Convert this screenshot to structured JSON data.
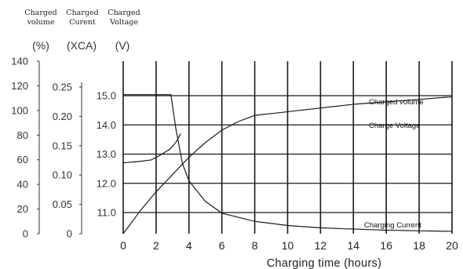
{
  "axes_headers": {
    "volume": [
      "Charged",
      "volume"
    ],
    "current": [
      "Charged",
      "Curent"
    ],
    "voltage": [
      "Charged",
      "Voltage"
    ]
  },
  "units": {
    "volume": "(%)",
    "current": "(XCA)",
    "voltage": "(V)"
  },
  "chart_data": {
    "type": "line",
    "xlabel": "Charging time (hours)",
    "x_ticks": [
      "0",
      "2",
      "4",
      "6",
      "8",
      "10",
      "12",
      "14",
      "16",
      "18",
      "20"
    ],
    "xlim": [
      0,
      20
    ],
    "y_axes": {
      "volume": {
        "ticks": [
          "0",
          "20",
          "40",
          "60",
          "80",
          "100",
          "120",
          "140"
        ],
        "range": [
          0,
          140
        ]
      },
      "current": {
        "ticks": [
          "0",
          "0.05",
          "0.10",
          "0.15",
          "0.20",
          "0.25"
        ],
        "range": [
          0,
          0.25
        ]
      },
      "voltage": {
        "ticks": [
          "11.0",
          "12.0",
          "13.0",
          "14.0",
          "15.0"
        ],
        "range": [
          11.0,
          15.0
        ]
      }
    },
    "grid": true,
    "series": [
      {
        "name": "Charged volume",
        "axis": "volume",
        "points": [
          [
            0,
            0
          ],
          [
            1,
            18
          ],
          [
            2,
            34
          ],
          [
            3,
            48
          ],
          [
            4,
            62
          ],
          [
            5,
            74
          ],
          [
            6,
            84
          ],
          [
            7,
            91
          ],
          [
            8,
            96
          ],
          [
            10,
            99
          ],
          [
            12,
            102
          ],
          [
            14,
            105
          ],
          [
            16,
            107
          ],
          [
            18,
            109
          ],
          [
            20,
            111
          ]
        ]
      },
      {
        "name": "Charge Voltage",
        "axis": "voltage",
        "points": [
          [
            0,
            12.7
          ],
          [
            1,
            12.75
          ],
          [
            1.7,
            12.8
          ],
          [
            2.2,
            12.95
          ],
          [
            2.8,
            13.15
          ],
          [
            3.2,
            13.4
          ],
          [
            3.5,
            13.7
          ]
        ]
      },
      {
        "name": "Charging Current",
        "axis": "current",
        "points": [
          [
            0,
            0.237
          ],
          [
            2.9,
            0.237
          ],
          [
            3.2,
            0.18
          ],
          [
            3.6,
            0.12
          ],
          [
            4,
            0.09
          ],
          [
            5,
            0.055
          ],
          [
            6,
            0.035
          ],
          [
            8,
            0.021
          ],
          [
            10,
            0.014
          ],
          [
            12,
            0.01
          ],
          [
            14,
            0.008
          ],
          [
            16,
            0.006
          ],
          [
            18,
            0.005
          ],
          [
            20,
            0.004
          ]
        ]
      }
    ]
  }
}
